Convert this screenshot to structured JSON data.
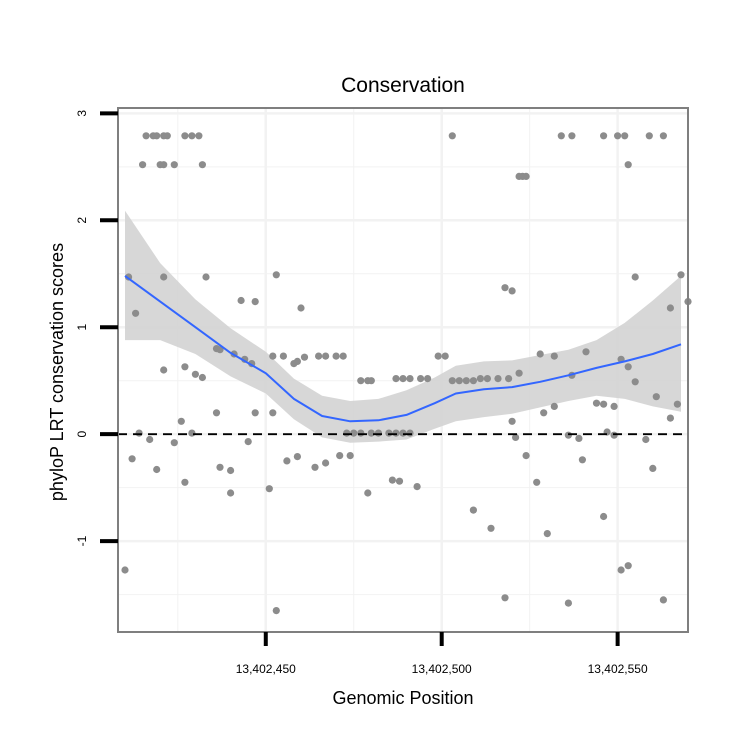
{
  "chart_data": {
    "type": "scatter",
    "title": "Conservation",
    "xlabel": "Genomic Position",
    "ylabel": "phyloP LRT conservation scores",
    "xlim": [
      13402408,
      13402570
    ],
    "ylim": [
      -1.85,
      3.05
    ],
    "x_ticks": [
      {
        "value": 13402450,
        "label": "13,402,450"
      },
      {
        "value": 13402500,
        "label": "13,402,500"
      },
      {
        "value": 13402550,
        "label": "13,402,550"
      }
    ],
    "y_ticks": [
      {
        "value": -1,
        "label": "-1"
      },
      {
        "value": 0,
        "label": "0"
      },
      {
        "value": 1,
        "label": "1"
      },
      {
        "value": 2,
        "label": "2"
      },
      {
        "value": 3,
        "label": "3"
      }
    ],
    "grid": true,
    "reference_line": {
      "y": 0,
      "style": "dashed"
    },
    "colors": {
      "points": "#8c8c8c",
      "smooth": "#3366ff",
      "band": "#d3d3d3",
      "panel_border": "#7f7f7f",
      "grid": "#f2f2f2"
    },
    "points": [
      [
        13402416,
        2.79
      ],
      [
        13402418,
        2.79
      ],
      [
        13402419,
        2.79
      ],
      [
        13402421,
        2.79
      ],
      [
        13402422,
        2.79
      ],
      [
        13402427,
        2.79
      ],
      [
        13402429,
        2.79
      ],
      [
        13402431,
        2.79
      ],
      [
        13402503,
        2.79
      ],
      [
        13402534,
        2.79
      ],
      [
        13402537,
        2.79
      ],
      [
        13402546,
        2.79
      ],
      [
        13402550,
        2.79
      ],
      [
        13402552,
        2.79
      ],
      [
        13402559,
        2.79
      ],
      [
        13402563,
        2.79
      ],
      [
        13402415,
        2.52
      ],
      [
        13402420,
        2.52
      ],
      [
        13402421,
        2.52
      ],
      [
        13402424,
        2.52
      ],
      [
        13402432,
        2.52
      ],
      [
        13402553,
        2.52
      ],
      [
        13402522,
        2.41
      ],
      [
        13402523,
        2.41
      ],
      [
        13402524,
        2.41
      ],
      [
        13402411,
        1.47
      ],
      [
        13402421,
        1.47
      ],
      [
        13402433,
        1.47
      ],
      [
        13402453,
        1.49
      ],
      [
        13402568,
        1.49
      ],
      [
        13402555,
        1.47
      ],
      [
        13402413,
        1.13
      ],
      [
        13402460,
        1.18
      ],
      [
        13402518,
        1.37
      ],
      [
        13402520,
        1.34
      ],
      [
        13402443,
        1.25
      ],
      [
        13402447,
        1.24
      ],
      [
        13402570,
        1.24
      ],
      [
        13402565,
        1.18
      ],
      [
        13402427,
        0.63
      ],
      [
        13402436,
        0.8
      ],
      [
        13402437,
        0.79
      ],
      [
        13402441,
        0.75
      ],
      [
        13402444,
        0.7
      ],
      [
        13402446,
        0.66
      ],
      [
        13402452,
        0.73
      ],
      [
        13402455,
        0.73
      ],
      [
        13402458,
        0.66
      ],
      [
        13402459,
        0.68
      ],
      [
        13402461,
        0.72
      ],
      [
        13402465,
        0.73
      ],
      [
        13402467,
        0.73
      ],
      [
        13402470,
        0.73
      ],
      [
        13402472,
        0.73
      ],
      [
        13402477,
        0.5
      ],
      [
        13402479,
        0.5
      ],
      [
        13402480,
        0.5
      ],
      [
        13402487,
        0.52
      ],
      [
        13402489,
        0.52
      ],
      [
        13402491,
        0.52
      ],
      [
        13402494,
        0.52
      ],
      [
        13402496,
        0.52
      ],
      [
        13402499,
        0.73
      ],
      [
        13402501,
        0.73
      ],
      [
        13402503,
        0.5
      ],
      [
        13402505,
        0.5
      ],
      [
        13402507,
        0.5
      ],
      [
        13402509,
        0.5
      ],
      [
        13402511,
        0.52
      ],
      [
        13402513,
        0.52
      ],
      [
        13402516,
        0.52
      ],
      [
        13402519,
        0.52
      ],
      [
        13402522,
        0.57
      ],
      [
        13402528,
        0.75
      ],
      [
        13402532,
        0.73
      ],
      [
        13402537,
        0.55
      ],
      [
        13402541,
        0.77
      ],
      [
        13402544,
        0.29
      ],
      [
        13402546,
        0.28
      ],
      [
        13402549,
        0.26
      ],
      [
        13402551,
        0.7
      ],
      [
        13402553,
        0.63
      ],
      [
        13402555,
        0.49
      ],
      [
        13402561,
        0.35
      ],
      [
        13402565,
        0.15
      ],
      [
        13402567,
        0.28
      ],
      [
        13402430,
        0.56
      ],
      [
        13402432,
        0.53
      ],
      [
        13402436,
        0.2
      ],
      [
        13402447,
        0.2
      ],
      [
        13402452,
        0.2
      ],
      [
        13402426,
        0.12
      ],
      [
        13402529,
        0.2
      ],
      [
        13402532,
        0.26
      ],
      [
        13402520,
        0.12
      ],
      [
        13402414,
        0.01
      ],
      [
        13402417,
        -0.05
      ],
      [
        13402421,
        0.6
      ],
      [
        13402429,
        0.01
      ],
      [
        13402473,
        0.01
      ],
      [
        13402475,
        0.01
      ],
      [
        13402477,
        0.01
      ],
      [
        13402480,
        0.01
      ],
      [
        13402482,
        0.01
      ],
      [
        13402485,
        0.01
      ],
      [
        13402487,
        0.01
      ],
      [
        13402489,
        0.01
      ],
      [
        13402491,
        0.01
      ],
      [
        13402536,
        -0.01
      ],
      [
        13402539,
        -0.04
      ],
      [
        13402547,
        0.02
      ],
      [
        13402549,
        -0.01
      ],
      [
        13402558,
        -0.05
      ],
      [
        13402412,
        -0.23
      ],
      [
        13402419,
        -0.33
      ],
      [
        13402424,
        -0.08
      ],
      [
        13402427,
        -0.45
      ],
      [
        13402437,
        -0.31
      ],
      [
        13402440,
        -0.34
      ],
      [
        13402445,
        -0.07
      ],
      [
        13402451,
        -0.51
      ],
      [
        13402456,
        -0.25
      ],
      [
        13402459,
        -0.21
      ],
      [
        13402464,
        -0.31
      ],
      [
        13402467,
        -0.27
      ],
      [
        13402471,
        -0.2
      ],
      [
        13402474,
        -0.2
      ],
      [
        13402479,
        -0.55
      ],
      [
        13402486,
        -0.43
      ],
      [
        13402488,
        -0.44
      ],
      [
        13402493,
        -0.49
      ],
      [
        13402509,
        -0.71
      ],
      [
        13402514,
        -0.88
      ],
      [
        13402521,
        -0.03
      ],
      [
        13402524,
        -0.2
      ],
      [
        13402527,
        -0.45
      ],
      [
        13402530,
        -0.93
      ],
      [
        13402540,
        -0.24
      ],
      [
        13402546,
        -0.77
      ],
      [
        13402560,
        -0.32
      ],
      [
        13402440,
        -0.55
      ],
      [
        13402410,
        -1.27
      ],
      [
        13402453,
        -1.65
      ],
      [
        13402518,
        -1.53
      ],
      [
        13402536,
        -1.58
      ],
      [
        13402551,
        -1.27
      ],
      [
        13402553,
        -1.23
      ],
      [
        13402563,
        -1.55
      ]
    ],
    "smooth": [
      [
        13402410,
        1.48
      ],
      [
        13402420,
        1.24
      ],
      [
        13402430,
        1.0
      ],
      [
        13402440,
        0.76
      ],
      [
        13402450,
        0.57
      ],
      [
        13402458,
        0.33
      ],
      [
        13402466,
        0.17
      ],
      [
        13402474,
        0.12
      ],
      [
        13402482,
        0.13
      ],
      [
        13402490,
        0.18
      ],
      [
        13402498,
        0.29
      ],
      [
        13402504,
        0.38
      ],
      [
        13402512,
        0.42
      ],
      [
        13402520,
        0.44
      ],
      [
        13402528,
        0.49
      ],
      [
        13402536,
        0.55
      ],
      [
        13402544,
        0.62
      ],
      [
        13402552,
        0.68
      ],
      [
        13402560,
        0.75
      ],
      [
        13402568,
        0.84
      ]
    ],
    "smooth_upper": [
      [
        13402410,
        2.09
      ],
      [
        13402420,
        1.6
      ],
      [
        13402430,
        1.26
      ],
      [
        13402440,
        0.99
      ],
      [
        13402450,
        0.77
      ],
      [
        13402458,
        0.52
      ],
      [
        13402466,
        0.36
      ],
      [
        13402474,
        0.31
      ],
      [
        13402482,
        0.33
      ],
      [
        13402490,
        0.41
      ],
      [
        13402498,
        0.53
      ],
      [
        13402504,
        0.64
      ],
      [
        13402512,
        0.68
      ],
      [
        13402520,
        0.69
      ],
      [
        13402528,
        0.74
      ],
      [
        13402536,
        0.79
      ],
      [
        13402544,
        0.88
      ],
      [
        13402552,
        1.04
      ],
      [
        13402560,
        1.25
      ],
      [
        13402568,
        1.48
      ]
    ],
    "smooth_lower": [
      [
        13402410,
        0.88
      ],
      [
        13402420,
        0.88
      ],
      [
        13402430,
        0.75
      ],
      [
        13402440,
        0.54
      ],
      [
        13402450,
        0.38
      ],
      [
        13402458,
        0.14
      ],
      [
        13402466,
        -0.03
      ],
      [
        13402474,
        -0.08
      ],
      [
        13402482,
        -0.07
      ],
      [
        13402490,
        -0.05
      ],
      [
        13402498,
        0.05
      ],
      [
        13402504,
        0.12
      ],
      [
        13402512,
        0.16
      ],
      [
        13402520,
        0.19
      ],
      [
        13402528,
        0.25
      ],
      [
        13402536,
        0.31
      ],
      [
        13402544,
        0.36
      ],
      [
        13402552,
        0.33
      ],
      [
        13402560,
        0.26
      ],
      [
        13402568,
        0.21
      ]
    ]
  }
}
